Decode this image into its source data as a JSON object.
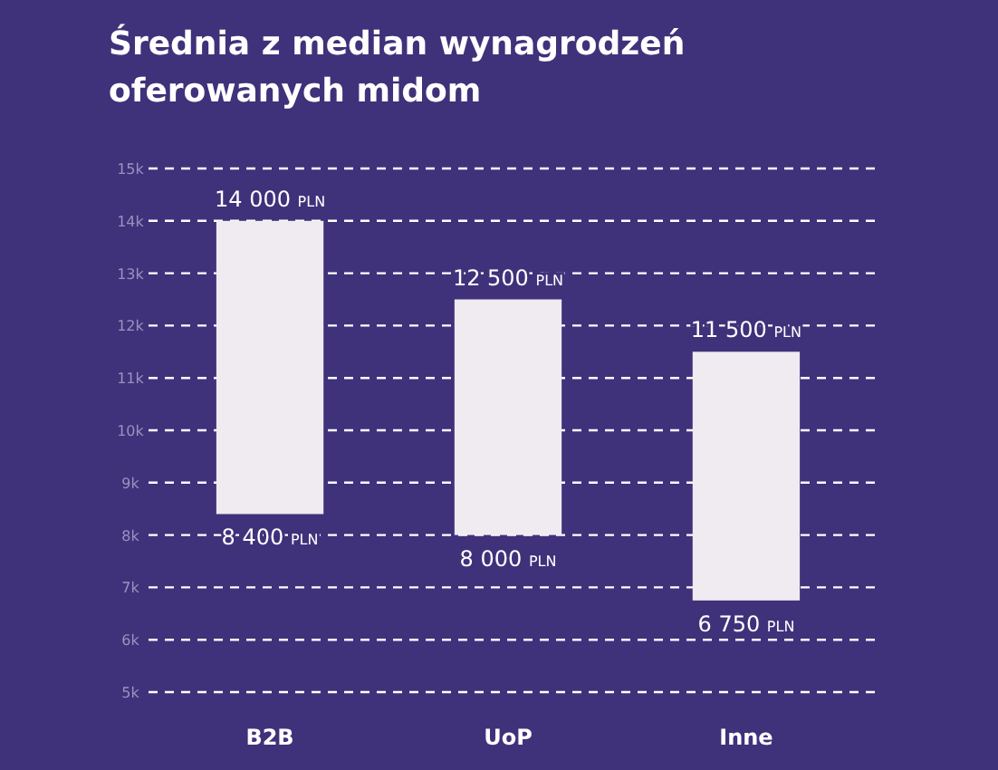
{
  "chart_data": {
    "type": "bar",
    "title": "Średnia z median wynagrodzeń oferowanych midom",
    "categories": [
      "B2B",
      "UoP",
      "Inne"
    ],
    "base": [
      8400,
      8000,
      6750
    ],
    "values": [
      5600,
      4500,
      4750
    ],
    "color": "#f0eaf1",
    "ylim": [
      5000,
      15000
    ],
    "yticks": [
      {
        "value": 5000,
        "label": "5k"
      },
      {
        "value": 6000,
        "label": "6k"
      },
      {
        "value": 7000,
        "label": "7k"
      },
      {
        "value": 8000,
        "label": "8k"
      },
      {
        "value": 9000,
        "label": "9k"
      },
      {
        "value": 10000,
        "label": "10k"
      },
      {
        "value": 11000,
        "label": "11k"
      },
      {
        "value": 12000,
        "label": "12k"
      },
      {
        "value": 13000,
        "label": "13k"
      },
      {
        "value": 14000,
        "label": "14k"
      },
      {
        "value": 15000,
        "label": "15k"
      }
    ],
    "grid": "y",
    "annotations": [
      {
        "text": "14 000 PLN",
        "x": "B2B",
        "y": 14000
      },
      {
        "text": "8 400 PLN",
        "x": "B2B",
        "y": 8400
      },
      {
        "text": "12 500 PLN",
        "x": "UoP",
        "y": 12500
      },
      {
        "text": "8 000 PLN",
        "x": "UoP",
        "y": 8000
      },
      {
        "text": "11 500 PLN",
        "x": "Inne",
        "y": 11500
      },
      {
        "text": "6 750 PLN",
        "x": "Inne",
        "y": 6750
      }
    ]
  }
}
